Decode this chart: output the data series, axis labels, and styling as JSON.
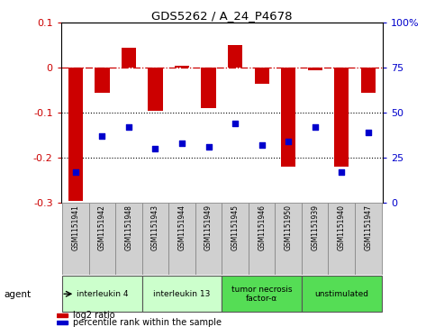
{
  "title": "GDS5262 / A_24_P4678",
  "samples": [
    "GSM1151941",
    "GSM1151942",
    "GSM1151948",
    "GSM1151943",
    "GSM1151944",
    "GSM1151949",
    "GSM1151945",
    "GSM1151946",
    "GSM1151950",
    "GSM1151939",
    "GSM1151940",
    "GSM1151947"
  ],
  "log2_ratio": [
    -0.295,
    -0.055,
    0.045,
    -0.095,
    0.005,
    -0.09,
    0.05,
    -0.035,
    -0.22,
    -0.005,
    -0.22,
    -0.055
  ],
  "percentile": [
    17,
    37,
    42,
    30,
    33,
    31,
    44,
    32,
    34,
    42,
    17,
    39
  ],
  "ymin": -0.3,
  "ymax": 0.1,
  "yticks_left": [
    0.1,
    0.0,
    -0.1,
    -0.2,
    -0.3
  ],
  "ytick_labels_left": [
    "0.1",
    "0",
    "-0.1",
    "-0.2",
    "-0.3"
  ],
  "ytick_labels_right": [
    "100%",
    "75",
    "50",
    "25",
    "0"
  ],
  "bar_color": "#cc0000",
  "dot_color": "#0000cc",
  "hline_y": 0.0,
  "dotted_lines": [
    -0.1,
    -0.2
  ],
  "agents": [
    {
      "label": "interleukin 4",
      "start": 0,
      "end": 2,
      "color": "#ccffcc"
    },
    {
      "label": "interleukin 13",
      "start": 3,
      "end": 5,
      "color": "#ccffcc"
    },
    {
      "label": "tumor necrosis\nfactor-α",
      "start": 6,
      "end": 8,
      "color": "#55dd55"
    },
    {
      "label": "unstimulated",
      "start": 9,
      "end": 11,
      "color": "#55dd55"
    }
  ],
  "legend_items": [
    {
      "label": "log2 ratio",
      "color": "#cc0000"
    },
    {
      "label": "percentile rank within the sample",
      "color": "#0000cc"
    }
  ],
  "agent_label": "agent",
  "bar_width": 0.55,
  "sample_box_color": "#d0d0d0"
}
